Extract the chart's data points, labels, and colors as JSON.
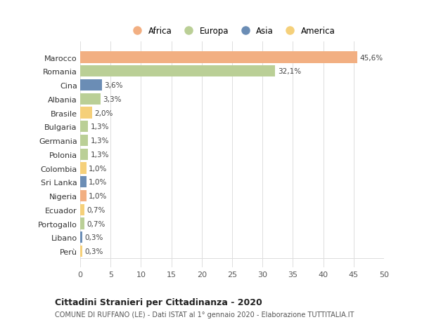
{
  "categories": [
    "Marocco",
    "Romania",
    "Cina",
    "Albania",
    "Brasile",
    "Bulgaria",
    "Germania",
    "Polonia",
    "Colombia",
    "Sri Lanka",
    "Nigeria",
    "Ecuador",
    "Portogallo",
    "Libano",
    "Perù"
  ],
  "values": [
    45.6,
    32.1,
    3.6,
    3.3,
    2.0,
    1.3,
    1.3,
    1.3,
    1.0,
    1.0,
    1.0,
    0.7,
    0.7,
    0.3,
    0.3
  ],
  "labels": [
    "45,6%",
    "32,1%",
    "3,6%",
    "3,3%",
    "2,0%",
    "1,3%",
    "1,3%",
    "1,3%",
    "1,0%",
    "1,0%",
    "1,0%",
    "0,7%",
    "0,7%",
    "0,3%",
    "0,3%"
  ],
  "continents": [
    "Africa",
    "Europa",
    "Asia",
    "Europa",
    "America",
    "Europa",
    "Europa",
    "Europa",
    "America",
    "Asia",
    "Africa",
    "America",
    "Europa",
    "Asia",
    "America"
  ],
  "colors": {
    "Africa": "#F2AF82",
    "Europa": "#BACF96",
    "Asia": "#6B8DB5",
    "America": "#F5D07A"
  },
  "legend_order": [
    "Africa",
    "Europa",
    "Asia",
    "America"
  ],
  "title": "Cittadini Stranieri per Cittadinanza - 2020",
  "subtitle": "COMUNE DI RUFFANO (LE) - Dati ISTAT al 1° gennaio 2020 - Elaborazione TUTTITALIA.IT",
  "xlim": [
    0,
    50
  ],
  "xticks": [
    0,
    5,
    10,
    15,
    20,
    25,
    30,
    35,
    40,
    45,
    50
  ],
  "background_color": "#ffffff",
  "grid_color": "#dddddd"
}
